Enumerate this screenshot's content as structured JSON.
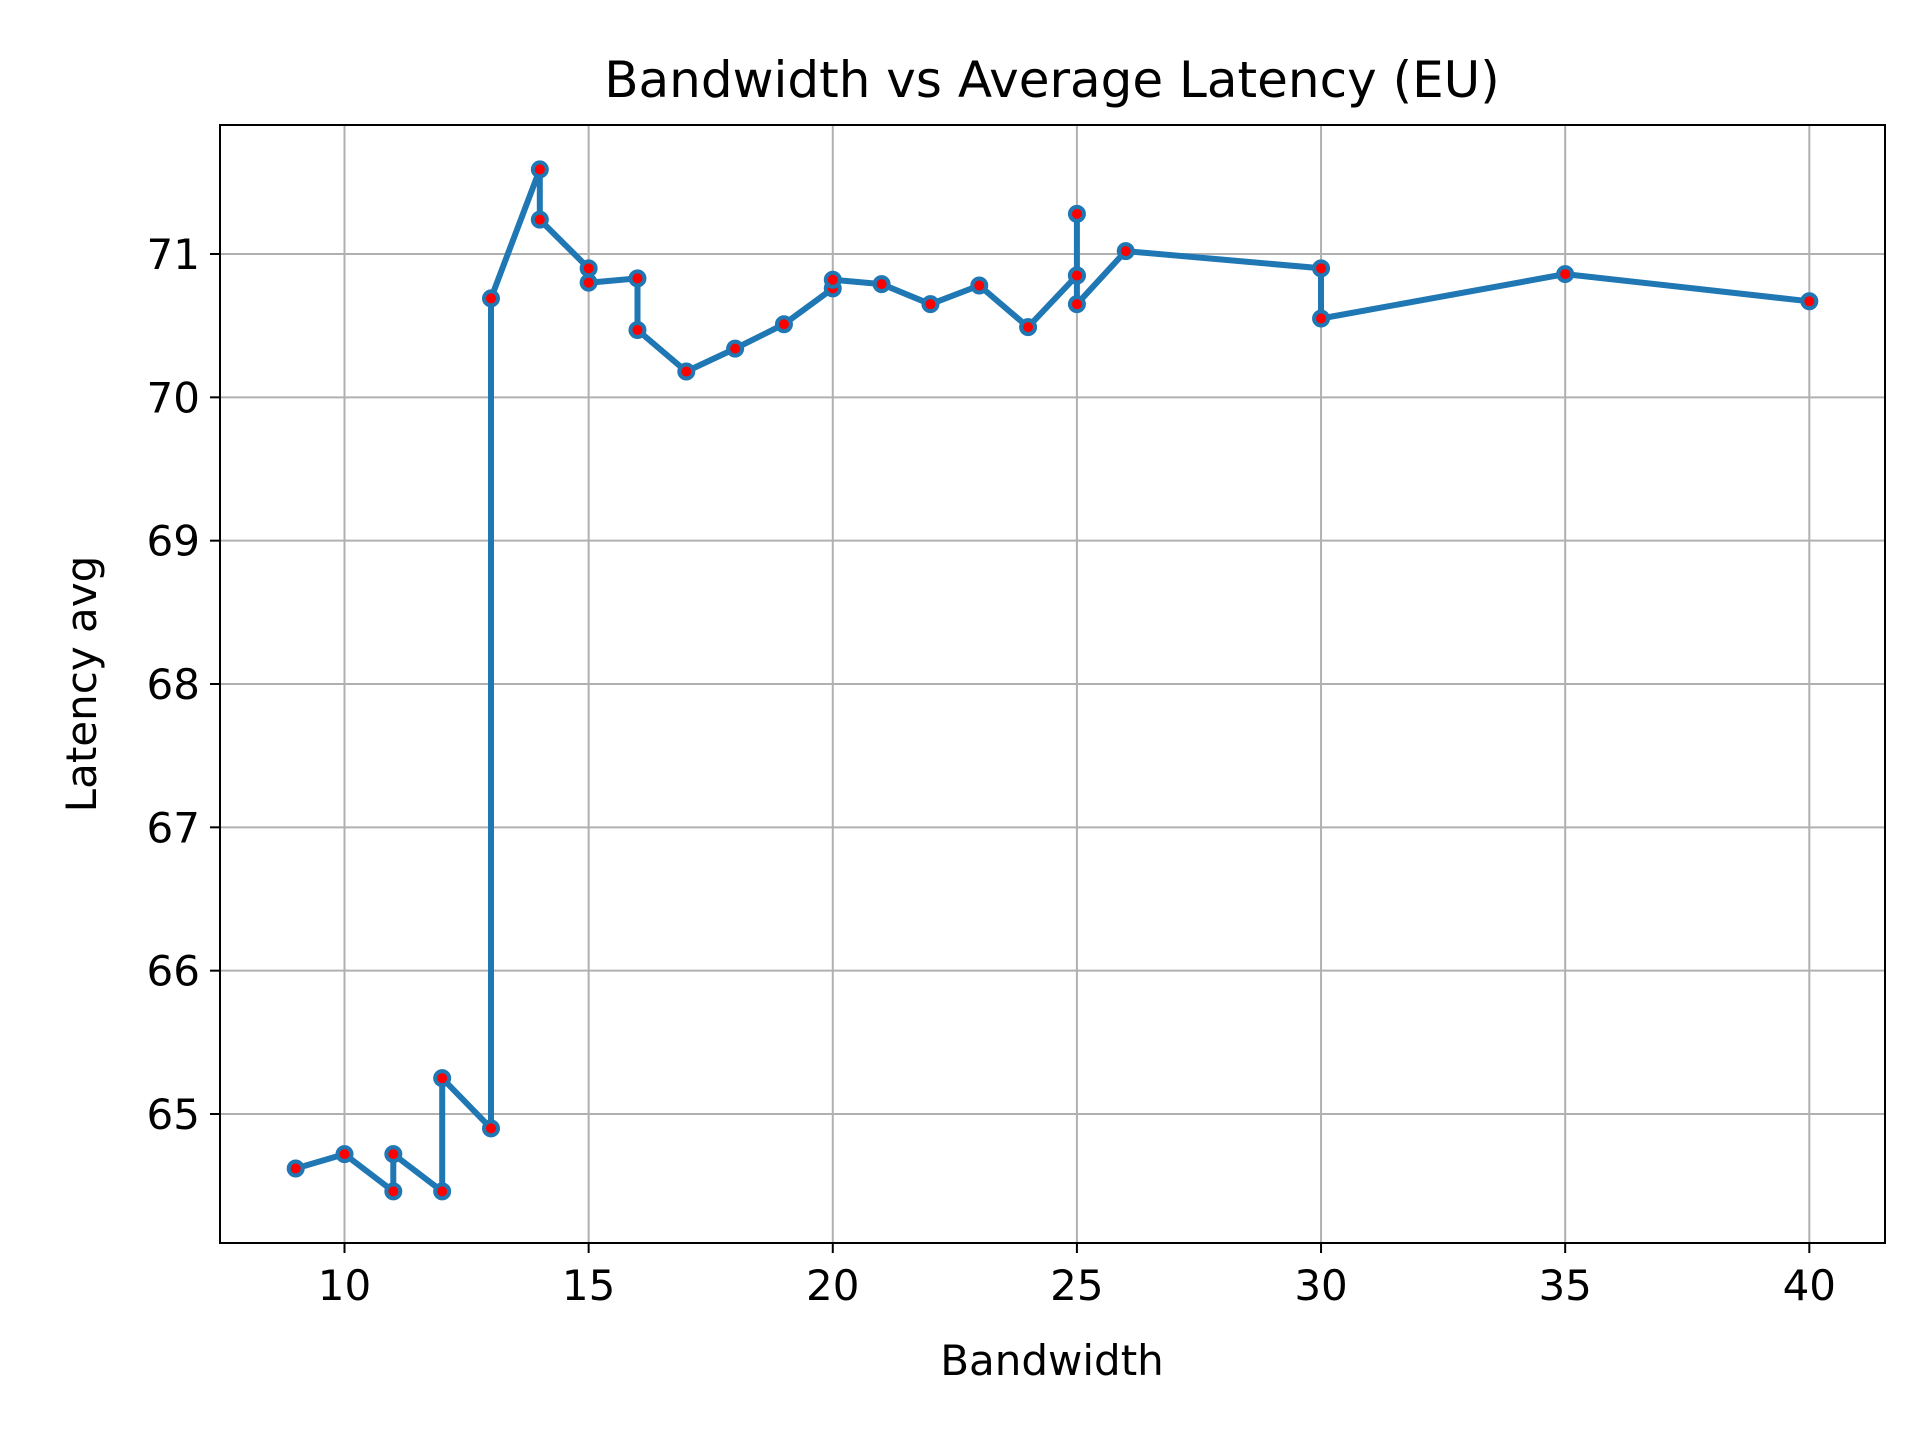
{
  "chart_data": {
    "type": "line",
    "title": "Bandwidth vs Average Latency (EU)",
    "xlabel": "Bandwidth",
    "ylabel": "Latency avg",
    "xlim": [
      7.45,
      41.55
    ],
    "ylim": [
      64.1,
      71.9
    ],
    "xticks": [
      10,
      15,
      20,
      25,
      30,
      35,
      40
    ],
    "yticks": [
      65,
      66,
      67,
      68,
      69,
      70,
      71
    ],
    "grid": true,
    "line_color": "#1f77b4",
    "marker_face_color": "#ff0000",
    "marker_edge_color": "#1f77b4",
    "series": [
      {
        "x": [
          9,
          10,
          11,
          11,
          12,
          12,
          13,
          13,
          14,
          14,
          15,
          15,
          16,
          16,
          17,
          18,
          19,
          20,
          20,
          21,
          22,
          23,
          24,
          25,
          25,
          25,
          25,
          26,
          30,
          30,
          35,
          40
        ],
        "y": [
          64.62,
          64.72,
          64.46,
          64.72,
          64.46,
          65.25,
          64.9,
          70.69,
          71.59,
          71.24,
          70.9,
          70.8,
          70.83,
          70.47,
          70.18,
          70.34,
          70.51,
          70.76,
          70.82,
          70.79,
          70.65,
          70.78,
          70.49,
          70.85,
          71.28,
          70.85,
          70.65,
          71.02,
          70.9,
          70.55,
          70.86,
          70.67
        ]
      }
    ]
  }
}
